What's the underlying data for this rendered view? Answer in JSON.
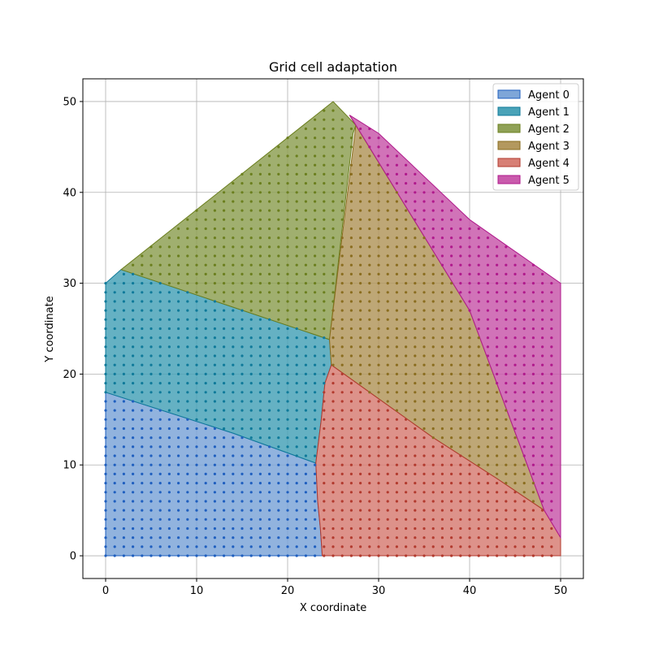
{
  "chart_data": {
    "type": "area",
    "title": "Grid cell adaptation",
    "xlabel": "X coordinate",
    "ylabel": "Y coordinate",
    "xlim": [
      -2.5,
      52.5
    ],
    "ylim": [
      -2.5,
      52.5
    ],
    "xticks": [
      0,
      10,
      20,
      30,
      40,
      50
    ],
    "yticks": [
      0,
      10,
      20,
      30,
      40,
      50
    ],
    "grid": true,
    "legend_position": "top-right",
    "grid_points": {
      "x_start": 0,
      "x_end": 50,
      "y_start": 0,
      "y_end": 50,
      "step": 1
    },
    "series": [
      {
        "name": "Agent 0",
        "color": "#1f5fbf",
        "fill": "#7ea6d8",
        "polygon": [
          [
            0,
            0
          ],
          [
            23.8,
            0
          ],
          [
            23.6,
            3
          ],
          [
            23.3,
            6
          ],
          [
            23.1,
            10.2
          ],
          [
            14,
            13.5
          ],
          [
            0,
            18
          ]
        ]
      },
      {
        "name": "Agent 1",
        "color": "#0f7a9a",
        "fill": "#4aa3b8",
        "polygon": [
          [
            0,
            18
          ],
          [
            14,
            13.5
          ],
          [
            23.1,
            10.2
          ],
          [
            23.7,
            15
          ],
          [
            24.1,
            19
          ],
          [
            24.8,
            21
          ],
          [
            24.6,
            23.8
          ],
          [
            1.7,
            31.5
          ],
          [
            0,
            30
          ]
        ]
      },
      {
        "name": "Agent 2",
        "color": "#6b7f1e",
        "fill": "#8fa156",
        "polygon": [
          [
            1.7,
            31.5
          ],
          [
            24.6,
            23.8
          ],
          [
            27.2,
            46.5
          ],
          [
            27.5,
            47.4
          ],
          [
            25,
            50
          ]
        ]
      },
      {
        "name": "Agent 3",
        "color": "#8a6d1f",
        "fill": "#b3985e",
        "polygon": [
          [
            24.6,
            23.8
          ],
          [
            24.8,
            21
          ],
          [
            36,
            13
          ],
          [
            43,
            8.5
          ],
          [
            48.2,
            5
          ],
          [
            40,
            27
          ],
          [
            26.8,
            48.5
          ],
          [
            27.5,
            47.4
          ]
        ]
      },
      {
        "name": "Agent 4",
        "color": "#b23a2e",
        "fill": "#d77f75",
        "polygon": [
          [
            23.8,
            0
          ],
          [
            50,
            0
          ],
          [
            50,
            2
          ],
          [
            48.2,
            5
          ],
          [
            43,
            8.5
          ],
          [
            36,
            13
          ],
          [
            24.8,
            21
          ],
          [
            24.1,
            19
          ],
          [
            23.7,
            15
          ],
          [
            23.1,
            10.2
          ],
          [
            23.3,
            6
          ],
          [
            23.6,
            3
          ]
        ]
      },
      {
        "name": "Agent 5",
        "color": "#b0198c",
        "fill": "#c95aac",
        "polygon": [
          [
            26.8,
            48.5
          ],
          [
            27.5,
            47.4
          ],
          [
            40,
            27
          ],
          [
            48.2,
            5
          ],
          [
            50,
            2
          ],
          [
            50,
            30
          ],
          [
            40,
            37
          ],
          [
            30,
            46.5
          ]
        ]
      }
    ],
    "legend_entries": [
      "Agent 0",
      "Agent 1",
      "Agent 2",
      "Agent 3",
      "Agent 4",
      "Agent 5"
    ]
  }
}
